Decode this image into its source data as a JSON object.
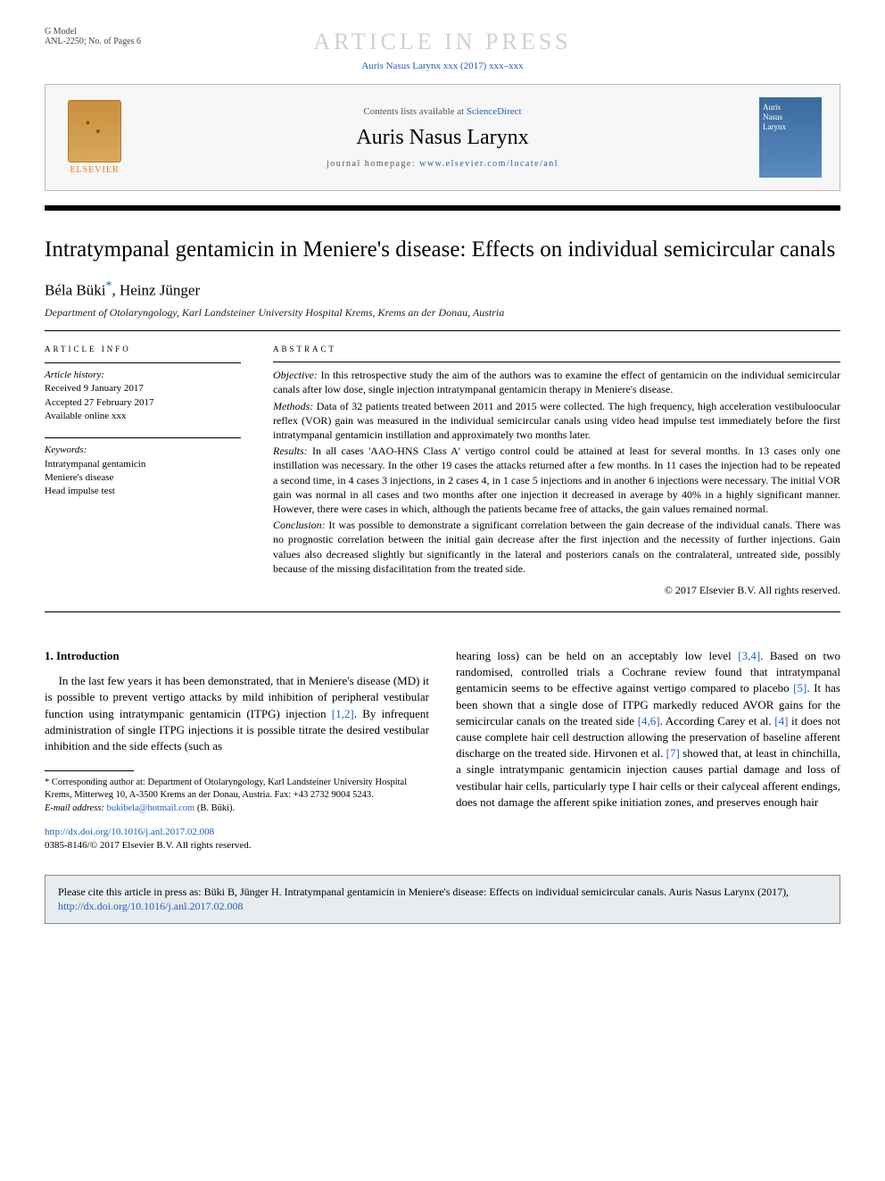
{
  "header": {
    "gmodel_label": "G Model",
    "gmodel_code": "ANL-2250; No. of Pages 6",
    "in_press": "ARTICLE IN PRESS",
    "journal_ref": "Auris Nasus Larynx xxx (2017) xxx–xxx",
    "contents_prefix": "Contents lists available at ",
    "contents_link": "ScienceDirect",
    "journal_name": "Auris Nasus Larynx",
    "homepage_prefix": "journal homepage: ",
    "homepage_url": "www.elsevier.com/locate/anl",
    "elsevier_label": "ELSEVIER",
    "cover_text": "Auris\nNasus\nLarynx"
  },
  "article": {
    "title": "Intratympanal gentamicin in Meniere's disease: Effects on individual semicircular canals",
    "author1": "Béla Büki",
    "star": "*",
    "author_sep": ", ",
    "author2": "Heinz Jünger",
    "affiliation": "Department of Otolaryngology, Karl Landsteiner University Hospital Krems, Krems an der Donau, Austria"
  },
  "info": {
    "heading": "ARTICLE INFO",
    "history_label": "Article history:",
    "received": "Received 9 January 2017",
    "accepted": "Accepted 27 February 2017",
    "available": "Available online xxx",
    "keywords_label": "Keywords:",
    "kw1": "Intratympanal gentamicin",
    "kw2": "Meniere's disease",
    "kw3": "Head impulse test"
  },
  "abstract": {
    "heading": "ABSTRACT",
    "objective_label": "Objective:",
    "objective": " In this retrospective study the aim of the authors was to examine the effect of gentamicin on the individual semicircular canals after low dose, single injection intratympanal gentamicin therapy in Meniere's disease.",
    "methods_label": "Methods:",
    "methods": " Data of 32 patients treated between 2011 and 2015 were collected. The high frequency, high acceleration vestibuloocular reflex (VOR) gain was measured in the individual semicircular canals using video head impulse test immediately before the first intratympanal gentamicin instillation and approximately two months later.",
    "results_label": "Results:",
    "results": " In all cases 'AAO-HNS Class A' vertigo control could be attained at least for several months. In 13 cases only one instillation was necessary. In the other 19 cases the attacks returned after a few months. In 11 cases the injection had to be repeated a second time, in 4 cases 3 injections, in 2 cases 4, in 1 case 5 injections and in another 6 injections were necessary. The initial VOR gain was normal in all cases and two months after one injection it decreased in average by 40% in a highly significant manner. However, there were cases in which, although the patients became free of attacks, the gain values remained normal.",
    "conclusion_label": "Conclusion:",
    "conclusion": " It was possible to demonstrate a significant correlation between the gain decrease of the individual canals. There was no prognostic correlation between the initial gain decrease after the first injection and the necessity of further injections. Gain values also decreased slightly but significantly in the lateral and posteriors canals on the contralateral, untreated side, possibly because of the missing disfacilitation from the treated side.",
    "copyright": "© 2017 Elsevier B.V. All rights reserved."
  },
  "body": {
    "section_num": "1.",
    "section_title": " Introduction",
    "col1_p1a": "In the last few years it has been demonstrated, that in Meniere's disease (MD) it is possible to prevent vertigo attacks by mild inhibition of peripheral vestibular function using intratympanic gentamicin (ITPG) injection ",
    "ref12": "[1,2]",
    "col1_p1b": ". By infrequent administration of single ITPG injections it is possible titrate the desired vestibular inhibition and the side effects (such as",
    "col2_p1a": "hearing loss) can be held on an acceptably low level ",
    "ref34": "[3,4]",
    "col2_p1b": ". Based on two randomised, controlled trials a Cochrane review found that intratympanal gentamicin seems to be effective against vertigo compared to placebo ",
    "ref5": "[5]",
    "col2_p1c": ". It has been shown that a single dose of ITPG markedly reduced AVOR gains for the semicircular canals on the treated side ",
    "ref46": "[4,6]",
    "col2_p1d": ". According Carey et al. ",
    "ref4": "[4]",
    "col2_p1e": " it does not cause complete hair cell destruction allowing the preservation of baseline afferent discharge on the treated side. Hirvonen et al. ",
    "ref7": "[7]",
    "col2_p1f": " showed that, at least in chinchilla, a single intratympanic gentamicin injection causes partial damage and loss of vestibular hair cells, particularly type I hair cells or their calyceal afferent endings, does not damage the afferent spike initiation zones, and preserves enough hair"
  },
  "footnotes": {
    "corr_label": "* Corresponding author at: ",
    "corr_text": "Department of Otolaryngology, Karl Landsteiner University Hospital Krems, Mitterweg 10, A-3500 Krems an der Donau, Austria. Fax: +43 2732 9004 5243.",
    "email_label": "E-mail address: ",
    "email": "bukibela@hotmail.com",
    "email_suffix": " (B. Büki)."
  },
  "doi": {
    "url": "http://dx.doi.org/10.1016/j.anl.2017.02.008",
    "issn_line": "0385-8146/© 2017 Elsevier B.V. All rights reserved."
  },
  "citebox": {
    "prefix": "Please cite this article in press as: Büki B, Jünger H. Intratympanal gentamicin in Meniere's disease: Effects on individual semicircular canals. Auris Nasus Larynx (2017), ",
    "url": "http://dx.doi.org/10.1016/j.anl.2017.02.008"
  },
  "colors": {
    "link": "#2060c0",
    "inpress": "#d0d0d0",
    "elsevier_orange": "#e67a1a",
    "citebox_bg": "#e8ecef"
  }
}
